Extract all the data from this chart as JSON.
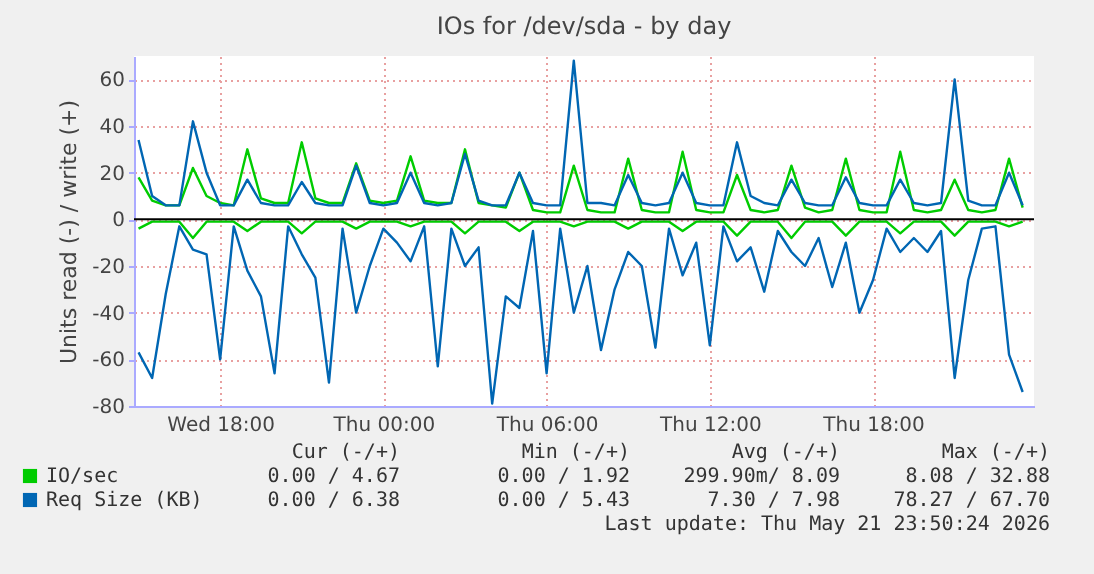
{
  "chart_data": {
    "type": "line",
    "title": "IOs for /dev/sda - by day",
    "ylabel": "Units read (-) / write (+)",
    "x": [
      "2026-05-20T15:00",
      "2026-05-20T15:30",
      "2026-05-20T16:00",
      "2026-05-20T16:30",
      "2026-05-20T17:00",
      "2026-05-20T17:30",
      "2026-05-20T18:00",
      "2026-05-20T18:30",
      "2026-05-20T19:00",
      "2026-05-20T19:30",
      "2026-05-20T20:00",
      "2026-05-20T20:30",
      "2026-05-20T21:00",
      "2026-05-20T21:30",
      "2026-05-20T22:00",
      "2026-05-20T22:30",
      "2026-05-20T23:00",
      "2026-05-20T23:30",
      "2026-05-21T00:00",
      "2026-05-21T00:30",
      "2026-05-21T01:00",
      "2026-05-21T01:30",
      "2026-05-21T02:00",
      "2026-05-21T02:30",
      "2026-05-21T03:00",
      "2026-05-21T03:30",
      "2026-05-21T04:00",
      "2026-05-21T04:30",
      "2026-05-21T05:00",
      "2026-05-21T05:30",
      "2026-05-21T06:00",
      "2026-05-21T06:30",
      "2026-05-21T07:00",
      "2026-05-21T07:30",
      "2026-05-21T08:00",
      "2026-05-21T08:30",
      "2026-05-21T09:00",
      "2026-05-21T09:30",
      "2026-05-21T10:00",
      "2026-05-21T10:30",
      "2026-05-21T11:00",
      "2026-05-21T11:30",
      "2026-05-21T12:00",
      "2026-05-21T12:30",
      "2026-05-21T13:00",
      "2026-05-21T13:30",
      "2026-05-21T14:00",
      "2026-05-21T14:30",
      "2026-05-21T15:00",
      "2026-05-21T15:30",
      "2026-05-21T16:00",
      "2026-05-21T16:30",
      "2026-05-21T17:00",
      "2026-05-21T17:30",
      "2026-05-21T18:00",
      "2026-05-21T18:30",
      "2026-05-21T19:00",
      "2026-05-21T19:30",
      "2026-05-21T20:00",
      "2026-05-21T20:30",
      "2026-05-21T21:00",
      "2026-05-21T21:30",
      "2026-05-21T22:00",
      "2026-05-21T22:30",
      "2026-05-21T23:00",
      "2026-05-21T23:30"
    ],
    "series": [
      {
        "name": "IO/sec",
        "color": "#00cc00",
        "values": [
          18,
          8,
          6,
          6,
          22,
          10,
          7,
          6,
          30,
          9,
          7,
          7,
          33,
          9,
          7,
          7,
          24,
          8,
          7,
          8,
          27,
          8,
          7,
          7,
          30,
          7,
          6,
          5,
          20,
          4,
          3,
          3,
          23,
          4,
          3,
          3,
          26,
          4,
          3,
          3,
          29,
          4,
          3,
          3,
          19,
          4,
          3,
          4,
          23,
          5,
          3,
          4,
          26,
          4,
          3,
          3,
          29,
          4,
          3,
          4,
          17,
          4,
          3,
          4,
          26,
          5
        ]
      },
      {
        "name": "Req Size (KB)",
        "color": "#0066b3",
        "values": [
          34,
          10,
          6,
          6,
          42,
          20,
          6,
          6,
          17,
          7,
          6,
          6,
          16,
          7,
          6,
          6,
          23,
          7,
          6,
          7,
          20,
          7,
          6,
          7,
          28,
          8,
          6,
          6,
          20,
          7,
          6,
          6,
          68,
          7,
          7,
          6,
          19,
          7,
          6,
          7,
          20,
          7,
          6,
          6,
          33,
          10,
          7,
          6,
          17,
          7,
          6,
          6,
          18,
          7,
          6,
          6,
          17,
          7,
          6,
          7,
          60,
          8,
          6,
          6,
          20,
          6
        ]
      },
      {
        "color": "#00cc00",
        "values": [
          -4,
          -1,
          -1,
          -1,
          -8,
          -1,
          -1,
          -1,
          -5,
          -1,
          -1,
          -1,
          -6,
          -1,
          -1,
          -1,
          -4,
          -1,
          -1,
          -1,
          -3,
          -1,
          -1,
          -1,
          -6,
          -1,
          -1,
          -1,
          -5,
          -1,
          -1,
          -1,
          -3,
          -1,
          -1,
          -1,
          -4,
          -1,
          -1,
          -1,
          -5,
          -1,
          -1,
          -1,
          -7,
          -1,
          -1,
          -1,
          -8,
          -1,
          -1,
          -1,
          -7,
          -1,
          -1,
          -1,
          -6,
          -1,
          -1,
          -1,
          -7,
          -1,
          -1,
          -1,
          -3,
          -1
        ]
      },
      {
        "color": "#0066b3",
        "values": [
          -57,
          -68,
          -32,
          -3,
          -13,
          -15,
          -60,
          -3,
          -22,
          -33,
          -66,
          -3,
          -15,
          -25,
          -70,
          -4,
          -40,
          -20,
          -4,
          -10,
          -18,
          -3,
          -63,
          -4,
          -20,
          -12,
          -79,
          -33,
          -38,
          -5,
          -66,
          -4,
          -40,
          -20,
          -56,
          -30,
          -14,
          -20,
          -55,
          -4,
          -24,
          -10,
          -54,
          -3,
          -18,
          -12,
          -31,
          -5,
          -14,
          -20,
          -8,
          -29,
          -10,
          -40,
          -26,
          -4,
          -14,
          -8,
          -14,
          -5,
          -68,
          -26,
          -4,
          -3,
          -58,
          -74
        ]
      }
    ],
    "xlim": [
      "2026-05-20T14:50",
      "2026-05-21T23:55"
    ],
    "xticks": [
      {
        "value": "2026-05-20T18:00",
        "label": "Wed 18:00"
      },
      {
        "value": "2026-05-21T00:00",
        "label": "Thu 00:00"
      },
      {
        "value": "2026-05-21T06:00",
        "label": "Thu 06:00"
      },
      {
        "value": "2026-05-21T12:00",
        "label": "Thu 12:00"
      },
      {
        "value": "2026-05-21T18:00",
        "label": "Thu 18:00"
      }
    ],
    "ylim": [
      -80,
      70
    ],
    "yticks": [
      -80,
      -60,
      -40,
      -20,
      0,
      20,
      40,
      60
    ],
    "ref_lines": [
      {
        "axis": "y",
        "value": 0,
        "color": "#000000"
      }
    ],
    "grid": true,
    "legend": "bottom",
    "marker": "none",
    "line_style": "solid",
    "annotations": [
      "Cur (-/+)",
      "Min (-/+)",
      "Avg (-/+)",
      "Max (-/+)",
      "0.00 /   4.67",
      "0.00 /   1.92",
      "299.90m/   8.09",
      "8.08 / 32.88",
      "0.00 /   6.38",
      "0.00 /   5.43",
      "7.30 /   7.98",
      "78.27 / 67.70",
      "Last update: Thu May 21 23:50:24 2026"
    ]
  }
}
